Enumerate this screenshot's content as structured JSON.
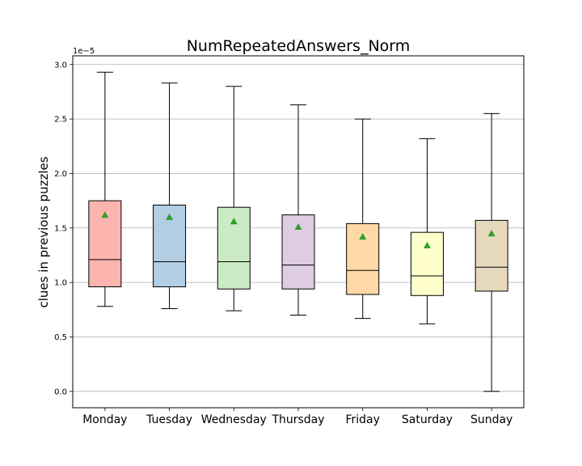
{
  "chart_data": {
    "type": "box",
    "title": "NumRepeatedAnswers_Norm",
    "xlabel": "",
    "ylabel": "clues in previous puzzles",
    "y_offset_label": "1e−5",
    "y_scale": 1e-05,
    "ylim": [
      -0.15,
      3.08
    ],
    "yticks": [
      0.0,
      0.5,
      1.0,
      1.5,
      2.0,
      2.5,
      3.0
    ],
    "ytick_labels": [
      "0.0",
      "0.5",
      "1.0",
      "1.5",
      "2.0",
      "2.5",
      "3.0"
    ],
    "grid": "horizontal",
    "categories": [
      "Monday",
      "Tuesday",
      "Wednesday",
      "Thursday",
      "Friday",
      "Saturday",
      "Sunday"
    ],
    "boxes": [
      {
        "whisker_low": 0.78,
        "q1": 0.96,
        "median": 1.21,
        "q3": 1.75,
        "whisker_high": 2.93,
        "mean": 1.62,
        "color": "#fbb4ae"
      },
      {
        "whisker_low": 0.76,
        "q1": 0.96,
        "median": 1.19,
        "q3": 1.71,
        "whisker_high": 2.83,
        "mean": 1.6,
        "color": "#b3cde3"
      },
      {
        "whisker_low": 0.74,
        "q1": 0.94,
        "median": 1.19,
        "q3": 1.69,
        "whisker_high": 2.8,
        "mean": 1.56,
        "color": "#ccebc5"
      },
      {
        "whisker_low": 0.7,
        "q1": 0.94,
        "median": 1.16,
        "q3": 1.62,
        "whisker_high": 2.63,
        "mean": 1.51,
        "color": "#decbe4"
      },
      {
        "whisker_low": 0.67,
        "q1": 0.89,
        "median": 1.11,
        "q3": 1.54,
        "whisker_high": 2.5,
        "mean": 1.42,
        "color": "#fed9a6"
      },
      {
        "whisker_low": 0.62,
        "q1": 0.88,
        "median": 1.06,
        "q3": 1.46,
        "whisker_high": 2.32,
        "mean": 1.34,
        "color": "#ffffcc"
      },
      {
        "whisker_low": 0.0,
        "q1": 0.92,
        "median": 1.14,
        "q3": 1.57,
        "whisker_high": 2.55,
        "mean": 1.45,
        "color": "#e5d8bd"
      }
    ],
    "mean_marker_color": "#2ca02c"
  }
}
